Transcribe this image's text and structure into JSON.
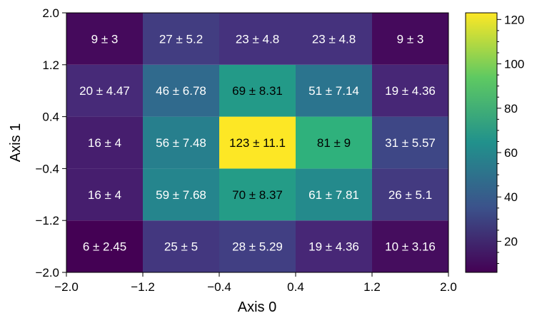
{
  "chart_data": {
    "type": "heatmap",
    "title": "",
    "xlabel": "Axis 0",
    "ylabel": "Axis 1",
    "x_edges": [
      -2.0,
      -1.2,
      -0.4,
      0.4,
      1.2,
      2.0
    ],
    "y_edges": [
      -2.0,
      -1.2,
      -0.4,
      0.4,
      1.2,
      2.0
    ],
    "x_tick_labels": [
      "−2.0",
      "−1.2",
      "−0.4",
      "0.4",
      "1.2",
      "2.0"
    ],
    "y_tick_labels": [
      "−2.0",
      "−1.2",
      "−0.4",
      "0.4",
      "1.2",
      "2.0"
    ],
    "values": [
      [
        6,
        25,
        28,
        19,
        10
      ],
      [
        16,
        59,
        70,
        61,
        26
      ],
      [
        16,
        56,
        123,
        81,
        31
      ],
      [
        20,
        46,
        69,
        51,
        19
      ],
      [
        9,
        27,
        23,
        23,
        9
      ]
    ],
    "cell_labels": [
      [
        "6 ± 2.45",
        "25 ± 5",
        "28 ± 5.29",
        "19 ± 4.36",
        "10 ± 3.16"
      ],
      [
        "16 ± 4",
        "59 ± 7.68",
        "70 ± 8.37",
        "61 ± 7.81",
        "26 ± 5.1"
      ],
      [
        "16 ± 4",
        "56 ± 7.48",
        "123 ± 11.1",
        "81 ± 9",
        "31 ± 5.57"
      ],
      [
        "20 ± 4.47",
        "46 ± 6.78",
        "69 ± 8.31",
        "51 ± 7.14",
        "19 ± 4.36"
      ],
      [
        "9 ± 3",
        "27 ± 5.2",
        "23 ± 4.8",
        "23 ± 4.8",
        "9 ± 3"
      ]
    ],
    "colormap": "viridis",
    "colorbar": {
      "vmin": 6,
      "vmax": 123,
      "ticks": [
        20,
        40,
        60,
        80,
        100,
        120
      ],
      "tick_labels": [
        "20",
        "40",
        "60",
        "80",
        "100",
        "120"
      ]
    },
    "grid": false
  }
}
